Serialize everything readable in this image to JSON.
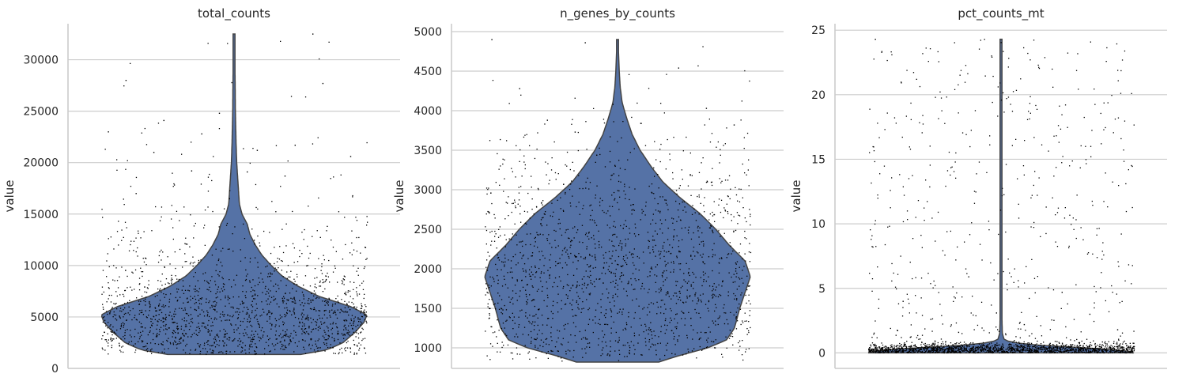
{
  "figure": {
    "ylabel": "value",
    "violin_color": "#5572a6",
    "outline_color": "#444444",
    "grid_color": "#cccccc",
    "point_color": "#000000"
  },
  "chart_data": [
    {
      "type": "violin",
      "title": "total_counts",
      "ylabel": "value",
      "ylim": [
        0,
        33500
      ],
      "yticks": [
        0,
        5000,
        10000,
        15000,
        20000,
        25000,
        30000
      ],
      "ytick_labels": [
        "0",
        "5000",
        "10000",
        "15000",
        "20000",
        "25000",
        "30000"
      ],
      "grid": true,
      "distribution": {
        "min": 1350,
        "max": 32500,
        "density_profile": [
          [
            1350,
            0.5
          ],
          [
            1800,
            0.7
          ],
          [
            2500,
            0.82
          ],
          [
            3500,
            0.91
          ],
          [
            4500,
            0.98
          ],
          [
            5200,
            1.0
          ],
          [
            6000,
            0.88
          ],
          [
            7000,
            0.64
          ],
          [
            8000,
            0.48
          ],
          [
            9000,
            0.36
          ],
          [
            10000,
            0.28
          ],
          [
            11000,
            0.21
          ],
          [
            12000,
            0.16
          ],
          [
            13000,
            0.12
          ],
          [
            14000,
            0.1
          ],
          [
            15000,
            0.06
          ],
          [
            16000,
            0.04
          ],
          [
            17000,
            0.035
          ],
          [
            18000,
            0.03
          ],
          [
            19000,
            0.025
          ],
          [
            20000,
            0.02
          ],
          [
            22000,
            0.015
          ],
          [
            25000,
            0.01
          ],
          [
            28000,
            0.008
          ],
          [
            30000,
            0.006
          ],
          [
            32500,
            0.005
          ]
        ],
        "outlier_points": [
          23000,
          22800,
          21700,
          17000,
          16500,
          27700,
          24100,
          21200,
          20600,
          19200,
          18700,
          28000,
          24800,
          32500,
          21000,
          19100
        ]
      }
    },
    {
      "type": "violin",
      "title": "n_genes_by_counts",
      "ylabel": "value",
      "ylim": [
        740,
        5100
      ],
      "yticks": [
        1000,
        1500,
        2000,
        2500,
        3000,
        3500,
        4000,
        4500,
        5000
      ],
      "ytick_labels": [
        "1000",
        "1500",
        "2000",
        "2500",
        "3000",
        "3500",
        "4000",
        "4500",
        "5000"
      ],
      "grid": true,
      "distribution": {
        "min": 820,
        "max": 4900,
        "density_profile": [
          [
            820,
            0.31
          ],
          [
            900,
            0.46
          ],
          [
            1000,
            0.68
          ],
          [
            1100,
            0.82
          ],
          [
            1250,
            0.88
          ],
          [
            1500,
            0.92
          ],
          [
            1700,
            0.96
          ],
          [
            1900,
            1.0
          ],
          [
            2100,
            0.96
          ],
          [
            2300,
            0.84
          ],
          [
            2500,
            0.74
          ],
          [
            2700,
            0.62
          ],
          [
            2900,
            0.47
          ],
          [
            3100,
            0.34
          ],
          [
            3300,
            0.25
          ],
          [
            3500,
            0.17
          ],
          [
            3700,
            0.11
          ],
          [
            3900,
            0.07
          ],
          [
            4100,
            0.035
          ],
          [
            4300,
            0.02
          ],
          [
            4500,
            0.013
          ],
          [
            4700,
            0.008
          ],
          [
            4900,
            0.005
          ]
        ],
        "outlier_points": [
          4900,
          4860,
          4540,
          4280,
          4080,
          4030,
          3880,
          3840,
          3820,
          3730
        ]
      }
    },
    {
      "type": "violin",
      "title": "pct_counts_mt",
      "ylabel": "value",
      "ylim": [
        -1.2,
        25.5
      ],
      "yticks": [
        0,
        5,
        10,
        15,
        20,
        25
      ],
      "ytick_labels": [
        "0",
        "5",
        "10",
        "15",
        "20",
        "25"
      ],
      "grid": true,
      "distribution": {
        "min": 0.0,
        "max": 24.3,
        "density_profile": [
          [
            0.0,
            1.0
          ],
          [
            0.2,
            0.92
          ],
          [
            0.4,
            0.62
          ],
          [
            0.6,
            0.28
          ],
          [
            0.8,
            0.09
          ],
          [
            1.0,
            0.025
          ],
          [
            1.5,
            0.01
          ],
          [
            3.0,
            0.006
          ],
          [
            10.0,
            0.005
          ],
          [
            24.3,
            0.005
          ]
        ],
        "outlier_points": [
          24.3,
          5.9,
          4.7,
          4.0,
          3.1,
          3.0,
          2.6,
          2.2,
          1.8,
          1.6
        ]
      }
    }
  ]
}
